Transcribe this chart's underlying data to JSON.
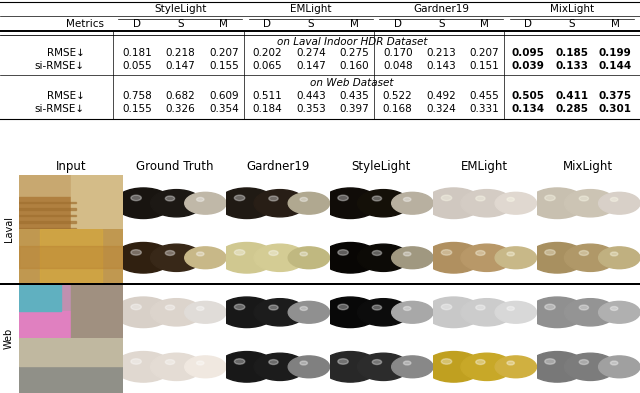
{
  "table": {
    "group_labels": [
      "StyleLight",
      "EMLight",
      "Gardner19",
      "MixLight"
    ],
    "col_headers": [
      "Metrics",
      "D",
      "S",
      "M",
      "D",
      "S",
      "M",
      "D",
      "S",
      "M",
      "D",
      "S",
      "M"
    ],
    "laval_label": "on Laval Indoor HDR Dataset",
    "laval_rows": [
      [
        "RMSE↓",
        "0.181",
        "0.218",
        "0.207",
        "0.202",
        "0.274",
        "0.275",
        "0.170",
        "0.213",
        "0.207",
        "0.095",
        "0.185",
        "0.199"
      ],
      [
        "si-RMSE↓",
        "0.055",
        "0.147",
        "0.155",
        "0.065",
        "0.147",
        "0.160",
        "0.048",
        "0.143",
        "0.151",
        "0.039",
        "0.133",
        "0.144"
      ]
    ],
    "web_label": "on Web Dataset",
    "web_rows": [
      [
        "RMSE↓",
        "0.758",
        "0.682",
        "0.609",
        "0.511",
        "0.443",
        "0.435",
        "0.522",
        "0.492",
        "0.455",
        "0.505",
        "0.411",
        "0.375"
      ],
      [
        "si-RMSE↓",
        "0.155",
        "0.326",
        "0.354",
        "0.184",
        "0.353",
        "0.397",
        "0.168",
        "0.324",
        "0.331",
        "0.134",
        "0.285",
        "0.301"
      ]
    ]
  },
  "col_labels": [
    "Input",
    "Ground Truth",
    "Gardner19",
    "StyleLight",
    "EMLight",
    "MixLight"
  ],
  "row_group_labels": [
    "Laval",
    "Web"
  ],
  "bg_color": "#ffffff",
  "table_fs": 7.5,
  "img_label_fs": 8.5,
  "side_label_fs": 7
}
